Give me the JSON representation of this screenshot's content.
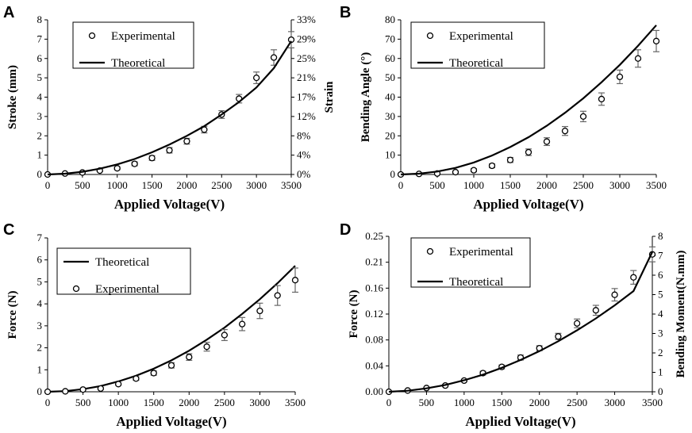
{
  "chart_data": [
    {
      "panel": "A",
      "type": "scatter",
      "xlabel": "Applied Voltage(V)",
      "ylabel": "Stroke (mm)",
      "y2label": "Strain",
      "xlim": [
        0,
        3500
      ],
      "xticks": [
        0,
        500,
        1000,
        1500,
        2000,
        2500,
        3000,
        3500
      ],
      "ylim": [
        0,
        8
      ],
      "yticks": [
        0,
        1,
        2,
        3,
        4,
        5,
        6,
        7,
        8
      ],
      "y2ticks": [
        "0%",
        "4%",
        "8%",
        "12%",
        "17%",
        "21%",
        "25%",
        "29%",
        "33%"
      ],
      "legend": {
        "position": "top-left",
        "entries": [
          "Experimental",
          "Theoretical"
        ]
      },
      "series": [
        {
          "name": "Experimental",
          "style": "markers",
          "x": [
            0,
            250,
            500,
            750,
            1000,
            1250,
            1500,
            1750,
            2000,
            2250,
            2500,
            2750,
            3000,
            3250,
            3500
          ],
          "y": [
            0,
            0.05,
            0.1,
            0.2,
            0.32,
            0.55,
            0.85,
            1.25,
            1.72,
            2.32,
            3.1,
            3.92,
            5.0,
            6.05,
            6.97
          ],
          "err": [
            0,
            0.02,
            0.03,
            0.05,
            0.07,
            0.1,
            0.12,
            0.14,
            0.15,
            0.17,
            0.2,
            0.22,
            0.3,
            0.4,
            0.42
          ]
        },
        {
          "name": "Theoretical",
          "style": "line",
          "x": [
            0,
            250,
            500,
            750,
            1000,
            1250,
            1500,
            1750,
            2000,
            2250,
            2500,
            2750,
            3000,
            3250,
            3500
          ],
          "y": [
            0,
            0.04,
            0.14,
            0.3,
            0.52,
            0.8,
            1.15,
            1.55,
            2.0,
            2.5,
            3.1,
            3.75,
            4.5,
            5.5,
            6.9
          ]
        }
      ]
    },
    {
      "panel": "B",
      "type": "scatter",
      "xlabel": "Applied Voltage(V)",
      "ylabel": "Bending Angle (°)",
      "xlim": [
        0,
        3500
      ],
      "xticks": [
        0,
        500,
        1000,
        1500,
        2000,
        2500,
        3000,
        3500
      ],
      "ylim": [
        0,
        80
      ],
      "yticks": [
        0,
        10,
        20,
        30,
        40,
        50,
        60,
        70,
        80
      ],
      "legend": {
        "position": "top-left",
        "entries": [
          "Experimental",
          "Theoretical"
        ]
      },
      "series": [
        {
          "name": "Experimental",
          "style": "markers",
          "x": [
            0,
            250,
            500,
            750,
            1000,
            1250,
            1500,
            1750,
            2000,
            2250,
            2500,
            2750,
            3000,
            3250,
            3500
          ],
          "y": [
            0,
            0.3,
            0.5,
            1.2,
            2.2,
            4.5,
            7.5,
            11.5,
            17,
            22.5,
            30,
            39,
            50.5,
            60,
            69
          ],
          "err": [
            0,
            0.2,
            0.3,
            0.5,
            0.8,
            1.0,
            1.3,
            1.7,
            2.0,
            2.3,
            2.7,
            3.2,
            3.5,
            4.5,
            5.5
          ]
        },
        {
          "name": "Theoretical",
          "style": "line",
          "x": [
            0,
            250,
            500,
            750,
            1000,
            1250,
            1500,
            1750,
            2000,
            2250,
            2500,
            2750,
            3000,
            3250,
            3500
          ],
          "y": [
            0,
            0.4,
            1.5,
            3.4,
            6.2,
            9.8,
            14.2,
            19.3,
            25.2,
            31.9,
            39.4,
            47.7,
            56.7,
            66.6,
            77.2
          ]
        }
      ]
    },
    {
      "panel": "C",
      "type": "scatter",
      "xlabel": "Applied Voltage(V)",
      "ylabel": "Force (N)",
      "xlim": [
        0,
        3500
      ],
      "xticks": [
        0,
        500,
        1000,
        1500,
        2000,
        2500,
        3000,
        3500
      ],
      "ylim": [
        0,
        7
      ],
      "yticks": [
        0,
        1,
        2,
        3,
        4,
        5,
        6,
        7
      ],
      "legend": {
        "position": "top-left",
        "entries": [
          "Theoretical",
          "Experimental"
        ]
      },
      "series": [
        {
          "name": "Theoretical",
          "style": "line",
          "x": [
            0,
            250,
            500,
            750,
            1000,
            1250,
            1500,
            1750,
            2000,
            2250,
            2500,
            2750,
            3000,
            3250,
            3500
          ],
          "y": [
            0,
            0.03,
            0.12,
            0.26,
            0.47,
            0.73,
            1.05,
            1.43,
            1.87,
            2.37,
            2.92,
            3.54,
            4.21,
            4.94,
            5.73
          ]
        },
        {
          "name": "Experimental",
          "style": "markers",
          "x": [
            0,
            250,
            500,
            750,
            1000,
            1250,
            1500,
            1750,
            2000,
            2250,
            2500,
            2750,
            3000,
            3250,
            3500
          ],
          "y": [
            0,
            0.02,
            0.1,
            0.15,
            0.35,
            0.6,
            0.85,
            1.2,
            1.58,
            2.05,
            2.58,
            3.08,
            3.68,
            4.38,
            5.08
          ],
          "err": [
            0,
            0.01,
            0.02,
            0.04,
            0.05,
            0.08,
            0.1,
            0.12,
            0.15,
            0.2,
            0.25,
            0.3,
            0.35,
            0.45,
            0.55
          ]
        }
      ]
    },
    {
      "panel": "D",
      "type": "scatter",
      "xlabel": "Applied Voltage(V)",
      "ylabel": "Force (N)",
      "y2label": "Bending Moment(N.mm)",
      "xlim": [
        0,
        3500
      ],
      "xticks": [
        0,
        500,
        1000,
        1500,
        2000,
        2500,
        3000,
        3500
      ],
      "ylim": [
        0,
        0.25
      ],
      "yticks": [
        "0.00",
        "0.04",
        "0.08",
        "0.12",
        "0.16",
        "0.21",
        "0.25"
      ],
      "y2lim": [
        0,
        8
      ],
      "y2ticks": [
        0,
        1,
        2,
        3,
        4,
        5,
        6,
        7,
        8
      ],
      "legend": {
        "position": "top-left",
        "entries": [
          "Experimental",
          "Theoretical"
        ]
      },
      "series": [
        {
          "name": "Experimental",
          "style": "markers",
          "x": [
            0,
            250,
            500,
            750,
            1000,
            1250,
            1500,
            1750,
            2000,
            2250,
            2500,
            2750,
            3000,
            3250,
            3500
          ],
          "y": [
            0,
            0.002,
            0.006,
            0.01,
            0.018,
            0.03,
            0.04,
            0.055,
            0.07,
            0.089,
            0.11,
            0.131,
            0.156,
            0.184,
            0.221
          ],
          "err": [
            0,
            0.001,
            0.001,
            0.002,
            0.002,
            0.003,
            0.003,
            0.004,
            0.004,
            0.005,
            0.007,
            0.008,
            0.01,
            0.011,
            0.012
          ]
        },
        {
          "name": "Theoretical",
          "style": "line",
          "x": [
            0,
            250,
            500,
            750,
            1000,
            1250,
            1500,
            1750,
            2000,
            2250,
            2500,
            2750,
            3000,
            3250,
            3500
          ],
          "y": [
            0,
            0.0017,
            0.0055,
            0.011,
            0.0185,
            0.0276,
            0.0385,
            0.0511,
            0.0653,
            0.0812,
            0.0988,
            0.118,
            0.139,
            0.162,
            0.225
          ]
        }
      ]
    }
  ]
}
